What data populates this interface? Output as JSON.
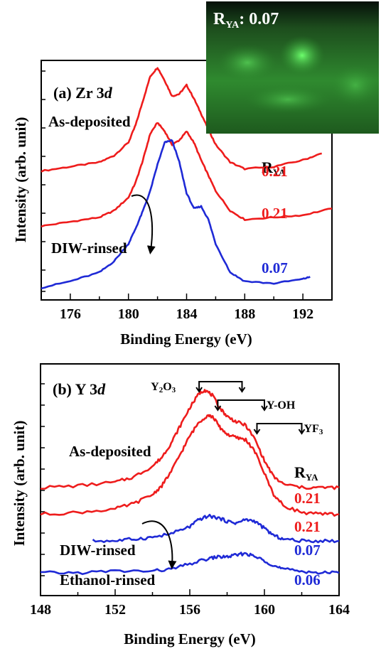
{
  "colors": {
    "red": "#ee1c1c",
    "blue": "#1f2ad6",
    "inset_bg": "#1a2a14",
    "inset_glow": "#3fdc3f"
  },
  "inset": {
    "label_main": "R",
    "label_sub": "YA",
    "label_value": ": 0.07"
  },
  "chart_data": [
    {
      "type": "line",
      "panel_label": "(a) Zr 3",
      "panel_label_italic": "d",
      "xlabel": "Binding Energy (eV)",
      "ylabel": "Intensity (arb. unit)",
      "xlim": [
        174,
        194
      ],
      "xticks": [
        "176",
        "180",
        "184",
        "188",
        "192"
      ],
      "ratio_header_main": "R",
      "ratio_header_sub": "YA",
      "annotations": [
        "As-deposited",
        "DIW-rinsed"
      ],
      "series": [
        {
          "label": "0.21",
          "color": "red",
          "x": [
            174,
            176,
            178,
            179,
            180,
            180.5,
            181,
            181.5,
            182,
            182.5,
            183,
            183.5,
            184,
            184.5,
            185,
            185.5,
            186,
            187,
            188,
            190,
            192,
            193.3
          ],
          "y": [
            0.53,
            0.55,
            0.57,
            0.6,
            0.66,
            0.74,
            0.85,
            0.96,
            1.0,
            0.94,
            0.87,
            0.88,
            0.92,
            0.86,
            0.79,
            0.72,
            0.65,
            0.57,
            0.54,
            0.55,
            0.58,
            0.61
          ]
        },
        {
          "label": "0.21",
          "color": "red",
          "x": [
            174,
            176,
            178,
            179,
            180,
            180.5,
            181,
            181.5,
            182,
            182.5,
            183,
            183.5,
            184,
            184.5,
            185,
            185.5,
            186,
            187,
            188,
            190,
            192,
            194
          ],
          "y": [
            0.28,
            0.3,
            0.32,
            0.35,
            0.41,
            0.48,
            0.58,
            0.7,
            0.75,
            0.71,
            0.65,
            0.67,
            0.71,
            0.66,
            0.58,
            0.51,
            0.44,
            0.35,
            0.31,
            0.32,
            0.33,
            0.36
          ]
        },
        {
          "label": "0.07",
          "color": "blue",
          "x": [
            174,
            176,
            178,
            179,
            180,
            180.5,
            181,
            181.5,
            182,
            182.5,
            183,
            183.5,
            184,
            184.5,
            185,
            185.5,
            186,
            187,
            188,
            190,
            192,
            192.5
          ],
          "y": [
            0.0,
            0.03,
            0.07,
            0.12,
            0.2,
            0.27,
            0.35,
            0.44,
            0.56,
            0.66,
            0.67,
            0.57,
            0.43,
            0.36,
            0.37,
            0.31,
            0.2,
            0.07,
            0.03,
            0.02,
            0.04,
            0.05
          ]
        }
      ]
    },
    {
      "type": "line",
      "panel_label": "(b) Y 3",
      "panel_label_italic": "d",
      "xlabel": "Binding Energy (eV)",
      "ylabel": "Intensity (arb. unit)",
      "xlim": [
        148,
        164
      ],
      "xticks": [
        "148",
        "152",
        "156",
        "160",
        "164"
      ],
      "ratio_header_main": "R",
      "ratio_header_sub": "YA",
      "annotations": [
        "As-deposited",
        "DIW-rinsed",
        "Ethanol-rinsed"
      ],
      "brackets": [
        {
          "label_parts": [
            "Y",
            "2",
            "O",
            "3"
          ],
          "x_start": 156.5,
          "x_end": 158.8
        },
        {
          "label_parts": [
            "Y-OH"
          ],
          "x_start": 157.5,
          "x_end": 160.0
        },
        {
          "label_parts": [
            "YF",
            "3"
          ],
          "x_start": 159.6,
          "x_end": 162.0
        }
      ],
      "series": [
        {
          "label": "0.21",
          "color": "red",
          "x": [
            148,
            150,
            152,
            153,
            154,
            154.5,
            155,
            155.5,
            156,
            156.5,
            156.8,
            157.2,
            157.6,
            158,
            158.5,
            159,
            159.5,
            160,
            160.5,
            161,
            162,
            163,
            164
          ],
          "y": [
            0.6,
            0.61,
            0.63,
            0.66,
            0.72,
            0.77,
            0.85,
            0.95,
            1.05,
            1.13,
            1.15,
            1.12,
            1.05,
            1.0,
            0.97,
            0.95,
            0.87,
            0.75,
            0.66,
            0.62,
            0.6,
            0.6,
            0.6
          ]
        },
        {
          "label": "0.21",
          "color": "red",
          "x": [
            148,
            150,
            152,
            153,
            154,
            154.5,
            155,
            155.5,
            156,
            156.5,
            157,
            157.3,
            157.6,
            158,
            158.5,
            159,
            159.5,
            160,
            160.5,
            161,
            162,
            163,
            164
          ],
          "y": [
            0.45,
            0.46,
            0.48,
            0.51,
            0.56,
            0.61,
            0.69,
            0.79,
            0.89,
            0.97,
            1.01,
            0.99,
            0.94,
            0.9,
            0.88,
            0.87,
            0.8,
            0.68,
            0.56,
            0.5,
            0.46,
            0.45,
            0.45
          ]
        },
        {
          "label": "0.07",
          "color": "blue",
          "x": [
            150.8,
            152,
            153,
            154,
            155,
            156,
            156.5,
            157,
            157.5,
            158,
            158.5,
            159,
            159.5,
            160,
            160.5,
            161,
            162,
            163,
            164
          ],
          "y": [
            0.3,
            0.3,
            0.31,
            0.32,
            0.34,
            0.38,
            0.42,
            0.44,
            0.43,
            0.41,
            0.4,
            0.42,
            0.41,
            0.37,
            0.33,
            0.31,
            0.3,
            0.3,
            0.3
          ]
        },
        {
          "label": "0.06",
          "color": "blue",
          "x": [
            148,
            150,
            152,
            154,
            155,
            156,
            157,
            157.5,
            158,
            158.5,
            159,
            159.5,
            160,
            160.5,
            161,
            162,
            163,
            164
          ],
          "y": [
            0.12,
            0.12,
            0.13,
            0.13,
            0.14,
            0.17,
            0.2,
            0.21,
            0.21,
            0.22,
            0.23,
            0.21,
            0.19,
            0.16,
            0.14,
            0.13,
            0.12,
            0.12
          ]
        }
      ]
    }
  ]
}
